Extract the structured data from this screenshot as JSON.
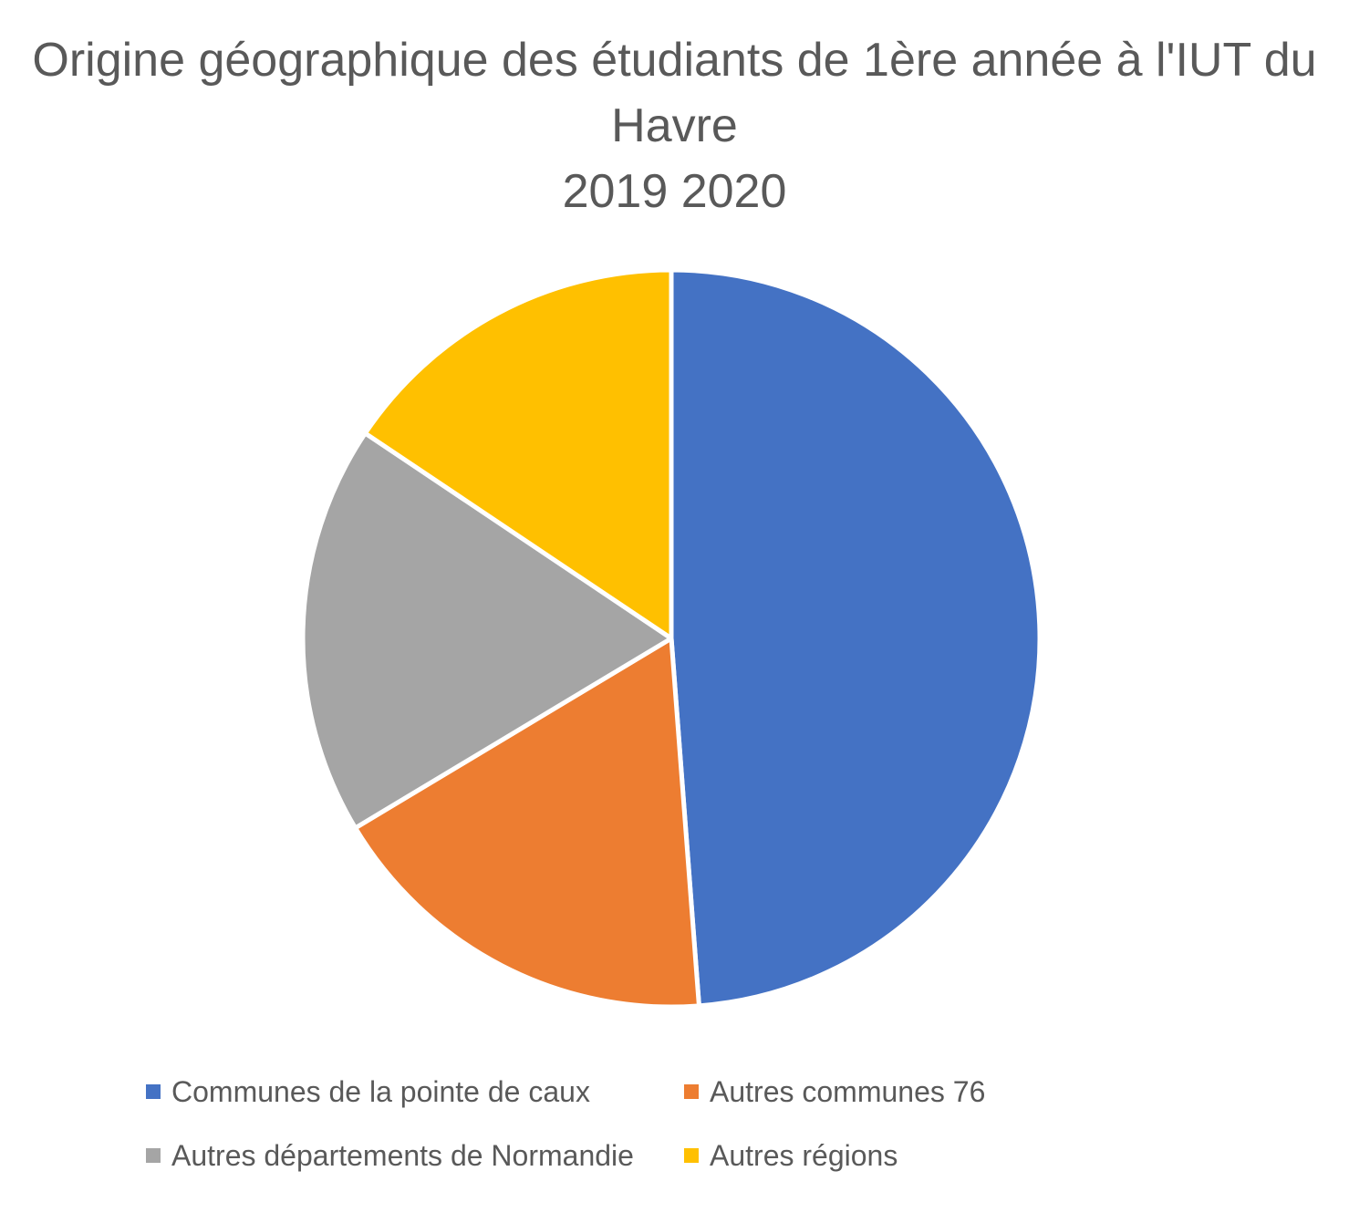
{
  "chart_data": {
    "type": "pie",
    "title": [
      "Origine géographique des étudiants de 1ère année à l'IUT du",
      "Havre",
      "2019 2020"
    ],
    "categories": [
      "Communes de la pointe de caux",
      "Autres communes 76",
      "Autres départements de Normandie",
      "Autres régions"
    ],
    "values": [
      48.8,
      17.6,
      18.0,
      15.6
    ],
    "colors": [
      "#4472C4",
      "#ED7D31",
      "#A5A5A5",
      "#FFC000"
    ],
    "start_angle": "12 o'clock",
    "direction": "clockwise",
    "legend_position": "bottom",
    "data_labels": false
  }
}
